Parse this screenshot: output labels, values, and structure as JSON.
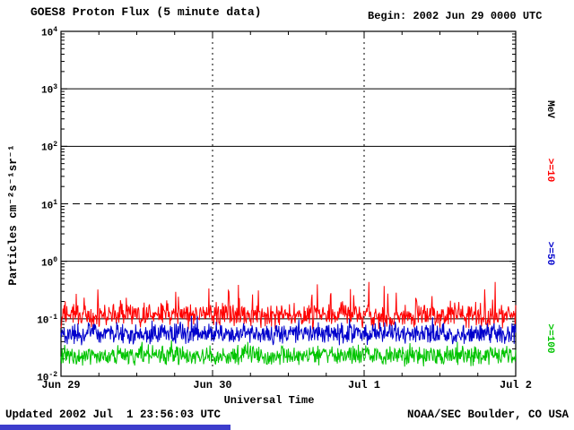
{
  "header": {
    "title": "GOES8 Proton Flux (5 minute data)",
    "begin_label": "Begin: 2002 Jun 29 0000 UTC"
  },
  "footer": {
    "updated": "Updated 2002 Jul  1 23:56:03 UTC",
    "credit": "NOAA/SEC Boulder, CO USA"
  },
  "chart_data": {
    "type": "line",
    "title": "GOES8 Proton Flux (5 minute data)",
    "begin": "2002 Jun 29 0000 UTC",
    "xlabel": "Universal Time",
    "ylabel": "Particles cm⁻²s⁻¹sr⁻¹",
    "x_tick_labels": [
      "Jun 29",
      "Jun 30",
      "Jul 1",
      "Jul 2"
    ],
    "y_tick_exponents": [
      4,
      3,
      2,
      1,
      0,
      -1,
      -2
    ],
    "ylim_log10": [
      -2,
      4
    ],
    "x_range_days": 3,
    "points_per_day": 288,
    "grid": {
      "solid_decades": [
        3,
        2,
        0,
        -1
      ],
      "dashed_decades": [
        1
      ],
      "vertical_dashed_day_indices": [
        1,
        2
      ]
    },
    "right_axis_unit": "MeV",
    "series": [
      {
        "name": ">=10",
        "unit": "MeV",
        "color": "#ff0000",
        "base_log10_flux": -0.95,
        "jitter_log10": 0.25,
        "spike_prob": 0.1,
        "spike_amp_log10": 0.45,
        "clamp_log10": [
          -1.45,
          -0.36
        ],
        "typical_flux_range": [
          0.06,
          0.45
        ]
      },
      {
        "name": ">=50",
        "unit": "MeV",
        "color": "#0000cc",
        "base_log10_flux": -1.26,
        "jitter_log10": 0.22,
        "spike_prob": 0.05,
        "spike_amp_log10": 0.2,
        "clamp_log10": [
          -1.62,
          -0.95
        ],
        "typical_flux_range": [
          0.025,
          0.11
        ]
      },
      {
        "name": ">=100",
        "unit": "MeV",
        "color": "#00c400",
        "base_log10_flux": -1.64,
        "jitter_log10": 0.2,
        "spike_prob": 0.04,
        "spike_amp_log10": 0.2,
        "clamp_log10": [
          -1.92,
          -1.32
        ],
        "typical_flux_range": [
          0.012,
          0.048
        ]
      }
    ]
  }
}
